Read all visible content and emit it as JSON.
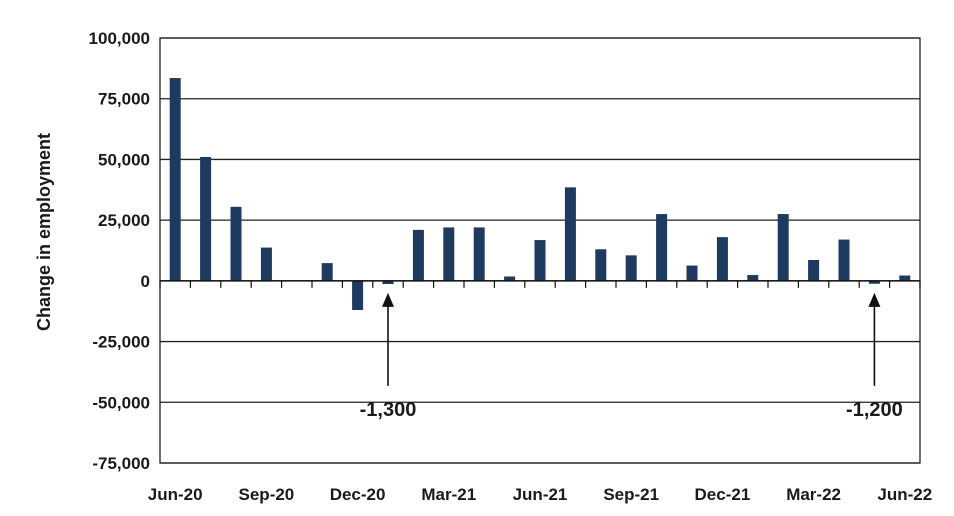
{
  "chart_data": {
    "type": "bar",
    "ylabel": "Change in employment",
    "xlabel": "",
    "title": "",
    "ylim": [
      -75000,
      100000
    ],
    "yticks": [
      100000,
      75000,
      50000,
      25000,
      0,
      -25000,
      -50000,
      -75000
    ],
    "ytick_labels": [
      "100,000",
      "75,000",
      "50,000",
      "25,000",
      "0",
      "-25,000",
      "-50,000",
      "-75,000"
    ],
    "categories": [
      "Jun-20",
      "Jul-20",
      "Aug-20",
      "Sep-20",
      "Oct-20",
      "Nov-20",
      "Dec-20",
      "Jan-21",
      "Feb-21",
      "Mar-21",
      "Apr-21",
      "May-21",
      "Jun-21",
      "Jul-21",
      "Aug-21",
      "Sep-21",
      "Oct-21",
      "Nov-21",
      "Dec-21",
      "Jan-22",
      "Feb-22",
      "Mar-22",
      "Apr-22",
      "May-22",
      "Jun-22"
    ],
    "values": [
      83500,
      51000,
      30500,
      13700,
      0,
      7300,
      -12000,
      -1300,
      21000,
      22000,
      22000,
      1800,
      16800,
      38500,
      13000,
      10500,
      27500,
      6300,
      18000,
      2400,
      27500,
      8600,
      17000,
      -1200,
      2200
    ],
    "xtick_labels": [
      {
        "index": 0,
        "label": "Jun-20"
      },
      {
        "index": 3,
        "label": "Sep-20"
      },
      {
        "index": 6,
        "label": "Dec-20"
      },
      {
        "index": 9,
        "label": "Mar-21"
      },
      {
        "index": 12,
        "label": "Jun-21"
      },
      {
        "index": 15,
        "label": "Sep-21"
      },
      {
        "index": 18,
        "label": "Dec-21"
      },
      {
        "index": 21,
        "label": "Mar-22"
      },
      {
        "index": 24,
        "label": "Jun-22"
      }
    ],
    "annotations": [
      {
        "index": 7,
        "text": "-1,300"
      },
      {
        "index": 23,
        "text": "-1,200"
      }
    ],
    "bar_color": "#1f3a5f",
    "grid": true,
    "legend": "none"
  }
}
